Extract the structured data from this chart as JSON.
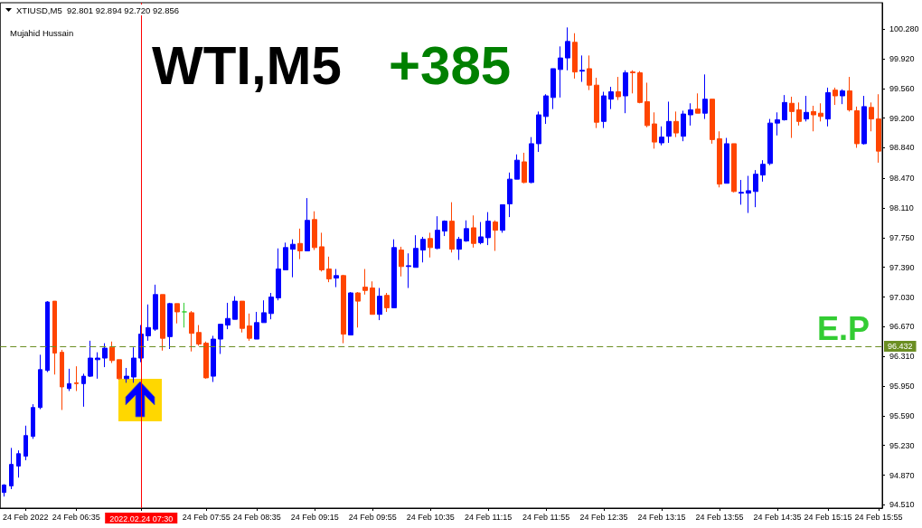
{
  "chart_data": {
    "type": "candlestick",
    "title": "WTI,M5",
    "subtitle": "+385",
    "annotations": [
      "XTIUSD,M5  92.801 92.894 92.720 92.856",
      "Mujahid Hussain",
      {
        "text": "96.432",
        "y": 96.432
      }
    ],
    "categories": [
      null,
      null,
      null,
      "24 Feb 2022",
      null,
      null,
      null,
      null,
      null,
      null,
      "24 Feb 06:35",
      null,
      null,
      null,
      null,
      null,
      null,
      null,
      null,
      "2022.02.24 07:30",
      null,
      null,
      null,
      null,
      null,
      null,
      null,
      null,
      "24 Feb 07:55",
      null,
      null,
      null,
      null,
      null,
      null,
      "24 Feb 08:35",
      null,
      null,
      null,
      null,
      null,
      null,
      null,
      "24 Feb 09:15",
      null,
      null,
      null,
      null,
      null,
      null,
      null,
      "24 Feb 09:55",
      null,
      null,
      null,
      null,
      null,
      null,
      null,
      "24 Feb 10:35",
      null,
      null,
      null,
      null,
      null,
      null,
      null,
      "24 Feb 11:15",
      null,
      null,
      null,
      null,
      null,
      null,
      null,
      "24 Feb 11:55",
      null,
      null,
      null,
      null,
      null,
      null,
      null,
      "24 Feb 12:35",
      null,
      null,
      null,
      null,
      null,
      null,
      null,
      "24 Feb 13:15",
      null,
      null,
      null,
      null,
      null,
      null,
      null,
      "24 Feb 13:55",
      null,
      null,
      null,
      null,
      null,
      null,
      null,
      "24 Feb 14:35",
      null,
      null,
      null,
      null,
      null,
      null,
      "24 Feb 15:15",
      null,
      null,
      null,
      null,
      null,
      null,
      "24 Feb 15:55"
    ],
    "ohlc": [
      [
        94.66,
        94.76,
        94.61,
        94.75
      ],
      [
        94.74,
        95.2,
        94.7,
        95.0
      ],
      [
        94.98,
        95.17,
        94.84,
        95.13
      ],
      [
        95.1,
        95.47,
        95.05,
        95.35
      ],
      [
        95.34,
        95.73,
        95.31,
        95.69
      ],
      [
        95.69,
        96.33,
        95.67,
        96.15
      ],
      [
        96.14,
        96.98,
        96.12,
        96.97
      ],
      [
        96.98,
        96.98,
        96.09,
        96.35
      ],
      [
        96.36,
        96.39,
        95.66,
        95.94
      ],
      [
        95.92,
        96.16,
        95.89,
        95.98
      ],
      [
        95.99,
        96.19,
        95.89,
        95.98
      ],
      [
        95.98,
        96.1,
        95.7,
        96.07
      ],
      [
        96.07,
        96.5,
        96.06,
        96.29
      ],
      [
        96.27,
        96.36,
        96.04,
        96.29
      ],
      [
        96.29,
        96.47,
        96.18,
        96.41
      ],
      [
        96.42,
        96.49,
        96.23,
        96.26
      ],
      [
        96.27,
        96.27,
        96.03,
        96.04
      ],
      [
        96.04,
        96.17,
        95.99,
        96.07
      ],
      [
        96.06,
        96.42,
        95.99,
        96.29
      ],
      [
        96.29,
        96.69,
        96.24,
        96.58
      ],
      [
        96.56,
        96.94,
        96.5,
        96.66
      ],
      [
        96.64,
        97.18,
        96.62,
        97.06
      ],
      [
        97.06,
        97.06,
        96.38,
        96.53
      ],
      [
        96.55,
        96.96,
        96.4,
        96.95
      ],
      [
        96.95,
        96.95,
        96.71,
        96.85
      ],
      [
        96.85,
        96.96,
        96.66,
        96.85
      ],
      [
        96.84,
        96.86,
        96.37,
        96.59
      ],
      [
        96.6,
        96.69,
        96.44,
        96.46
      ],
      [
        96.47,
        96.49,
        96.04,
        96.05
      ],
      [
        96.07,
        96.56,
        96.0,
        96.52
      ],
      [
        96.52,
        96.7,
        96.34,
        96.7
      ],
      [
        96.69,
        96.96,
        96.64,
        96.77
      ],
      [
        96.76,
        97.04,
        96.76,
        96.98
      ],
      [
        96.98,
        96.98,
        96.6,
        96.65
      ],
      [
        96.68,
        96.83,
        96.5,
        96.53
      ],
      [
        96.52,
        96.85,
        96.52,
        96.72
      ],
      [
        96.72,
        96.99,
        96.72,
        96.84
      ],
      [
        96.83,
        97.08,
        96.76,
        97.03
      ],
      [
        97.02,
        97.62,
        96.99,
        97.37
      ],
      [
        97.36,
        97.69,
        97.36,
        97.63
      ],
      [
        97.61,
        97.73,
        97.27,
        97.67
      ],
      [
        97.68,
        97.86,
        97.49,
        97.59
      ],
      [
        97.59,
        98.23,
        97.59,
        97.96
      ],
      [
        97.97,
        98.07,
        97.6,
        97.63
      ],
      [
        97.64,
        97.81,
        97.34,
        97.36
      ],
      [
        97.37,
        97.52,
        97.21,
        97.25
      ],
      [
        97.26,
        97.37,
        97.15,
        97.29
      ],
      [
        97.29,
        97.3,
        96.47,
        96.58
      ],
      [
        96.57,
        97.09,
        96.57,
        97.08
      ],
      [
        97.08,
        97.09,
        96.66,
        96.98
      ],
      [
        97.15,
        97.37,
        97.06,
        97.11
      ],
      [
        97.14,
        97.22,
        96.82,
        96.82
      ],
      [
        96.82,
        97.14,
        96.75,
        97.04
      ],
      [
        97.05,
        97.08,
        96.85,
        96.9
      ],
      [
        96.9,
        97.73,
        96.9,
        97.63
      ],
      [
        97.6,
        97.64,
        97.28,
        97.4
      ],
      [
        97.4,
        97.56,
        97.14,
        97.41
      ],
      [
        97.39,
        97.78,
        97.39,
        97.62
      ],
      [
        97.6,
        97.76,
        97.45,
        97.73
      ],
      [
        97.74,
        97.81,
        97.51,
        97.63
      ],
      [
        97.62,
        98.01,
        97.61,
        97.84
      ],
      [
        97.83,
        97.96,
        97.77,
        97.95
      ],
      [
        97.95,
        98.18,
        97.57,
        97.61
      ],
      [
        97.61,
        97.76,
        97.48,
        97.73
      ],
      [
        97.71,
        97.96,
        97.7,
        97.86
      ],
      [
        97.87,
        98.02,
        97.63,
        97.68
      ],
      [
        97.69,
        97.94,
        97.67,
        97.76
      ],
      [
        97.75,
        98.06,
        97.66,
        97.95
      ],
      [
        97.94,
        97.96,
        97.59,
        97.84
      ],
      [
        97.84,
        98.15,
        97.81,
        98.15
      ],
      [
        98.16,
        98.54,
        98.0,
        98.46
      ],
      [
        98.46,
        98.76,
        98.46,
        98.69
      ],
      [
        98.67,
        98.78,
        98.41,
        98.42
      ],
      [
        98.42,
        98.97,
        98.41,
        98.89
      ],
      [
        98.89,
        99.28,
        98.79,
        99.24
      ],
      [
        99.22,
        99.49,
        99.13,
        99.47
      ],
      [
        99.45,
        99.8,
        99.31,
        99.8
      ],
      [
        99.79,
        100.07,
        99.45,
        99.93
      ],
      [
        99.93,
        100.3,
        99.78,
        100.13
      ],
      [
        100.12,
        100.23,
        99.68,
        99.76
      ],
      [
        99.77,
        99.96,
        99.64,
        99.78
      ],
      [
        99.8,
        99.96,
        99.54,
        99.6
      ],
      [
        99.6,
        99.69,
        99.08,
        99.15
      ],
      [
        99.16,
        99.52,
        99.08,
        99.47
      ],
      [
        99.43,
        99.58,
        99.31,
        99.52
      ],
      [
        99.52,
        99.7,
        99.42,
        99.46
      ],
      [
        99.47,
        99.78,
        99.26,
        99.75
      ],
      [
        99.76,
        99.78,
        99.5,
        99.75
      ],
      [
        99.75,
        99.77,
        99.38,
        99.39
      ],
      [
        99.4,
        99.63,
        99.09,
        99.11
      ],
      [
        99.13,
        99.27,
        98.83,
        98.91
      ],
      [
        98.9,
        99.1,
        98.87,
        98.97
      ],
      [
        98.98,
        99.4,
        98.9,
        99.16
      ],
      [
        99.16,
        99.28,
        98.97,
        99.02
      ],
      [
        98.98,
        99.29,
        98.92,
        99.25
      ],
      [
        99.24,
        99.38,
        99.11,
        99.3
      ],
      [
        99.31,
        99.5,
        99.26,
        99.26
      ],
      [
        99.26,
        99.73,
        99.19,
        99.43
      ],
      [
        99.43,
        99.43,
        98.89,
        98.94
      ],
      [
        98.95,
        99.04,
        98.36,
        98.4
      ],
      [
        98.41,
        98.96,
        98.41,
        98.89
      ],
      [
        98.89,
        98.89,
        98.3,
        98.31
      ],
      [
        98.29,
        98.45,
        98.15,
        98.3
      ],
      [
        98.29,
        98.5,
        98.05,
        98.32
      ],
      [
        98.31,
        98.57,
        98.12,
        98.52
      ],
      [
        98.51,
        98.69,
        98.43,
        98.64
      ],
      [
        98.65,
        99.19,
        98.63,
        99.14
      ],
      [
        99.14,
        99.27,
        98.99,
        99.18
      ],
      [
        99.18,
        99.48,
        99.17,
        99.39
      ],
      [
        99.38,
        99.46,
        98.96,
        99.28
      ],
      [
        99.3,
        99.39,
        99.11,
        99.16
      ],
      [
        99.19,
        99.47,
        99.16,
        99.27
      ],
      [
        99.28,
        99.35,
        99.04,
        99.24
      ],
      [
        99.26,
        99.38,
        99.16,
        99.22
      ],
      [
        99.19,
        99.57,
        99.1,
        99.51
      ],
      [
        99.54,
        99.57,
        99.36,
        99.47
      ],
      [
        99.47,
        99.55,
        99.37,
        99.53
      ],
      [
        99.53,
        99.7,
        99.28,
        99.3
      ],
      [
        99.29,
        99.34,
        98.84,
        98.89
      ],
      [
        98.89,
        99.47,
        98.88,
        99.34
      ],
      [
        99.33,
        99.39,
        99.04,
        99.19
      ],
      [
        99.19,
        99.49,
        98.66,
        98.8
      ]
    ],
    "colors": [
      "#0000ff",
      "#0000ff",
      "#0000ff",
      "#0000ff",
      "#0000ff",
      "#0000ff",
      "#0000ff",
      "#ff4500",
      "#ff4500",
      "#0000ff",
      "#ff4500",
      "#0000ff",
      "#0000ff",
      "#0000ff",
      "#0000ff",
      "#ff4500",
      "#ff4500",
      "#0000ff",
      "#0000ff",
      "#0000ff",
      "#0000ff",
      "#0000ff",
      "#ff4500",
      "#0000ff",
      "#ff4500",
      "#32cd32",
      "#ff4500",
      "#ff4500",
      "#ff4500",
      "#0000ff",
      "#0000ff",
      "#0000ff",
      "#0000ff",
      "#ff4500",
      "#ff4500",
      "#0000ff",
      "#0000ff",
      "#0000ff",
      "#0000ff",
      "#0000ff",
      "#0000ff",
      "#ff4500",
      "#0000ff",
      "#ff4500",
      "#ff4500",
      "#ff4500",
      "#0000ff",
      "#ff4500",
      "#0000ff",
      "#ff4500",
      "#ff4500",
      "#ff4500",
      "#0000ff",
      "#ff4500",
      "#0000ff",
      "#ff4500",
      "#0000ff",
      "#0000ff",
      "#0000ff",
      "#ff4500",
      "#0000ff",
      "#0000ff",
      "#ff4500",
      "#0000ff",
      "#0000ff",
      "#ff4500",
      "#0000ff",
      "#0000ff",
      "#ff4500",
      "#0000ff",
      "#0000ff",
      "#0000ff",
      "#ff4500",
      "#0000ff",
      "#0000ff",
      "#0000ff",
      "#0000ff",
      "#0000ff",
      "#0000ff",
      "#ff4500",
      "#0000ff",
      "#ff4500",
      "#ff4500",
      "#0000ff",
      "#0000ff",
      "#ff4500",
      "#0000ff",
      "#ff4500",
      "#ff4500",
      "#ff4500",
      "#ff4500",
      "#0000ff",
      "#0000ff",
      "#ff4500",
      "#0000ff",
      "#0000ff",
      "#ff4500",
      "#0000ff",
      "#ff4500",
      "#ff4500",
      "#0000ff",
      "#ff4500",
      "#0000ff",
      "#0000ff",
      "#0000ff",
      "#0000ff",
      "#0000ff",
      "#0000ff",
      "#0000ff",
      "#ff4500",
      "#ff4500",
      "#0000ff",
      "#ff4500",
      "#ff4500",
      "#0000ff",
      "#ff4500",
      "#0000ff",
      "#ff4500",
      "#ff4500",
      "#0000ff",
      "#ff4500",
      "#ff4500"
    ],
    "ylim": [
      94.47,
      100.6
    ],
    "yticks": [
      {
        "value": 94.51,
        "label": "94.510"
      },
      {
        "value": 94.87,
        "label": "94.870"
      },
      {
        "value": 95.23,
        "label": "95.230"
      },
      {
        "value": 95.59,
        "label": "95.590"
      },
      {
        "value": 95.95,
        "label": "95.950"
      },
      {
        "value": 96.31,
        "label": "96.310"
      },
      {
        "value": 96.67,
        "label": "96.670"
      },
      {
        "value": 97.03,
        "label": "97.030"
      },
      {
        "value": 97.39,
        "label": "97.390"
      },
      {
        "value": 97.75,
        "label": "97.750"
      },
      {
        "value": 98.11,
        "label": "98.110"
      },
      {
        "value": 98.47,
        "label": "98.470"
      },
      {
        "value": 98.84,
        "label": "98.840"
      },
      {
        "value": 99.2,
        "label": "99.200"
      },
      {
        "value": 99.56,
        "label": "99.560"
      },
      {
        "value": 99.92,
        "label": "99.920"
      },
      {
        "value": 100.28,
        "label": "100.280"
      }
    ],
    "ref_lines": [
      {
        "axis": "y",
        "value": 96.432,
        "label": "E.P",
        "color": "#6b8e23",
        "line_style": "dashed"
      },
      {
        "axis": "x",
        "value": "2022.02.24 07:30",
        "color": "#ff0000"
      }
    ]
  }
}
